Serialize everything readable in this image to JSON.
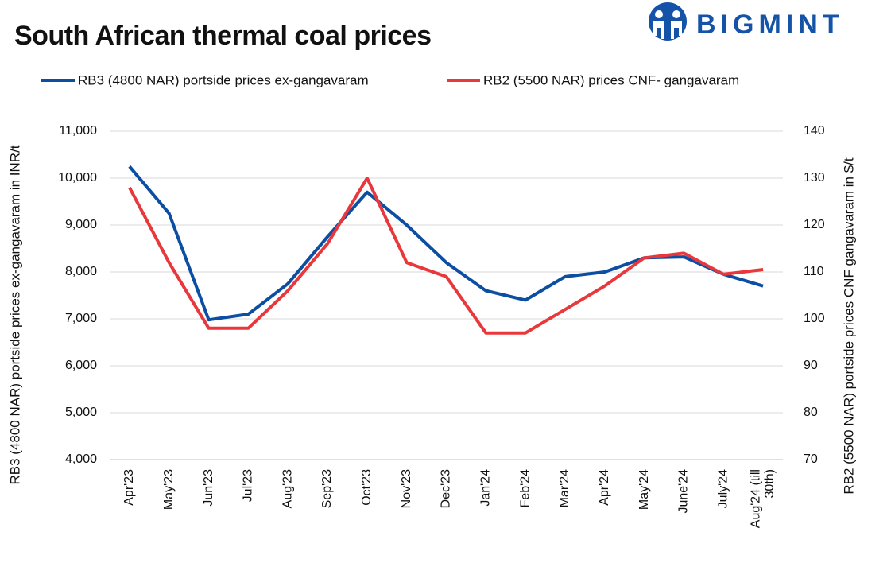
{
  "brand": "BIGMINT",
  "chart_data": {
    "type": "line",
    "title": "South African thermal coal prices",
    "categories": [
      "Apr'23",
      "May'23",
      "Jun'23",
      "Jul'23",
      "Aug'23",
      "Sep'23",
      "Oct'23",
      "Nov'23",
      "Dec'23",
      "Jan'24",
      "Feb'24",
      "Mar'24",
      "Apr'24",
      "May'24",
      "June'24",
      "July'24",
      "Aug'24 (till 30th)"
    ],
    "series": [
      {
        "name": "RB3 (4800 NAR) portside prices ex-gangavaram",
        "color": "#0b4ea2",
        "values": [
          10250,
          9250,
          6980,
          7100,
          7750,
          8750,
          9700,
          9000,
          8200,
          7600,
          7400,
          7900,
          8000,
          8300,
          8320,
          7950,
          7700
        ]
      },
      {
        "name": "RB2 (5500 NAR) prices CNF- gangavaram",
        "color": "#e8383b",
        "axis": "y2",
        "values": [
          128,
          112,
          98,
          98,
          106,
          116,
          130,
          112,
          109,
          97,
          97,
          102,
          107,
          113,
          114,
          109.5,
          110.5
        ]
      }
    ],
    "ylabel": "RB3 (4800 NAR) portside prices ex-gangavaram in INR/t",
    "y2label": "RB2 (5500 NAR) portside prices CNF  gangavaram in $/t",
    "ylim": [
      4000,
      11000
    ],
    "yticks": [
      {
        "value": 4000,
        "label": "4,000"
      },
      {
        "value": 5000,
        "label": "5,000"
      },
      {
        "value": 6000,
        "label": "6,000"
      },
      {
        "value": 7000,
        "label": "7,000"
      },
      {
        "value": 8000,
        "label": "8,000"
      },
      {
        "value": 9000,
        "label": "9,000"
      },
      {
        "value": 10000,
        "label": "10,000"
      },
      {
        "value": 11000,
        "label": "11,000"
      }
    ],
    "y2lim": [
      70,
      140
    ],
    "y2ticks": [
      70,
      80,
      90,
      100,
      110,
      120,
      130,
      140
    ],
    "grid": true
  }
}
